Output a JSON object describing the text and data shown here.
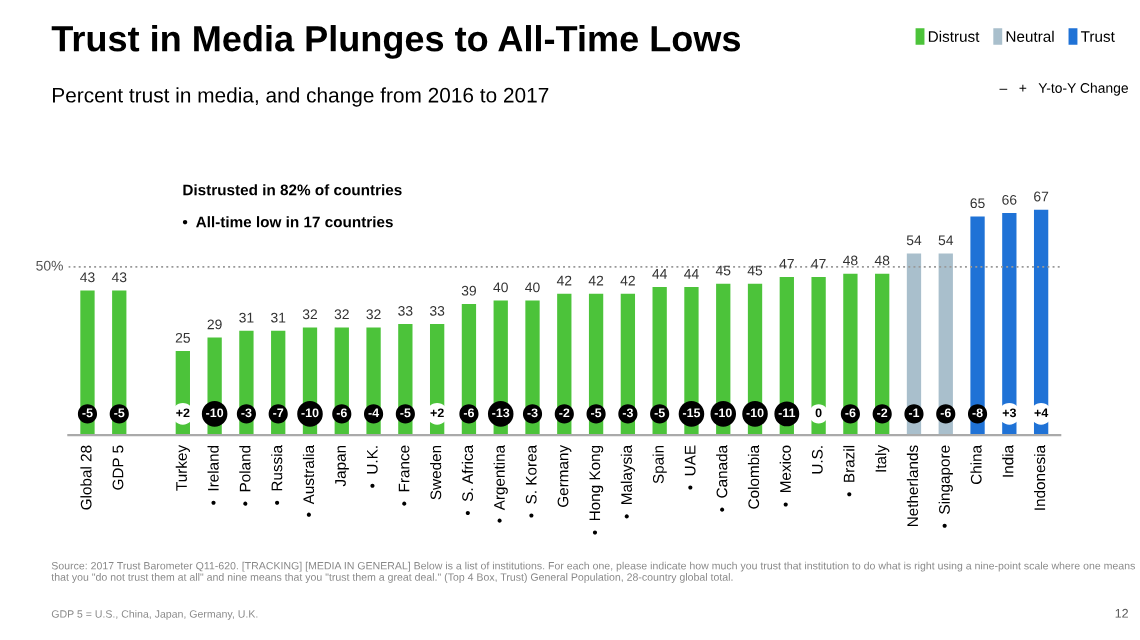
{
  "chart_data": {
    "type": "bar",
    "title": "Trust in Media Plunges to All-Time Lows",
    "subtitle": "Percent trust in media, and change from 2016 to 2017",
    "categories": [
      "Global 28",
      "GDP 5",
      null,
      "Turkey",
      "•  Ireland",
      "•  Poland",
      "•  Russia",
      "•  Australia",
      "Japan",
      "•  U.K.",
      "•  France",
      "Sweden",
      "•  S. Africa",
      "•  Argentina",
      "•  S. Korea",
      "Germany",
      "•  Hong Kong",
      "•  Malaysia",
      "Spain",
      "•  UAE",
      "•  Canada",
      "Colombia",
      "•  Mexico",
      "U.S.",
      "•  Brazil",
      "Italy",
      "Netherlands",
      "•  Singapore",
      "China",
      "India",
      "Indonesia"
    ],
    "series": [
      {
        "name": "Distrust",
        "color": "#4cc33a",
        "values": [
          43,
          43,
          null,
          25,
          29,
          31,
          31,
          32,
          32,
          32,
          33,
          33,
          39,
          40,
          40,
          42,
          42,
          42,
          44,
          44,
          45,
          45,
          47,
          47,
          48,
          48,
          null,
          null,
          null,
          null,
          null
        ]
      },
      {
        "name": "Neutral",
        "color": "#a9bfcc",
        "values": [
          null,
          null,
          null,
          null,
          null,
          null,
          null,
          null,
          null,
          null,
          null,
          null,
          null,
          null,
          null,
          null,
          null,
          null,
          null,
          null,
          null,
          null,
          null,
          null,
          null,
          null,
          54,
          54,
          null,
          null,
          null
        ]
      },
      {
        "name": "Trust",
        "color": "#1f72d6",
        "values": [
          null,
          null,
          null,
          null,
          null,
          null,
          null,
          null,
          null,
          null,
          null,
          null,
          null,
          null,
          null,
          null,
          null,
          null,
          null,
          null,
          null,
          null,
          null,
          null,
          null,
          null,
          null,
          null,
          65,
          66,
          67
        ]
      }
    ],
    "data_labels": true,
    "legend": "top right",
    "grid": false,
    "ref_lines": [
      {
        "axis": "y",
        "value": 50,
        "label": "50%",
        "color": "#999999",
        "line_style": "dotted"
      }
    ],
    "annotations": [
      {
        "text": "-5",
        "x": "Global 28"
      },
      {
        "text": "-5",
        "x": "GDP 5"
      },
      {
        "text": "+2",
        "x": "Turkey"
      },
      {
        "text": "-10",
        "x": "•  Ireland"
      },
      {
        "text": "-3",
        "x": "•  Poland"
      },
      {
        "text": "-7",
        "x": "•  Russia"
      },
      {
        "text": "-10",
        "x": "•  Australia"
      },
      {
        "text": "-6",
        "x": "Japan"
      },
      {
        "text": "-4",
        "x": "•  U.K."
      },
      {
        "text": "-5",
        "x": "•  France"
      },
      {
        "text": "+2",
        "x": "Sweden"
      },
      {
        "text": "-6",
        "x": "•  S. Africa"
      },
      {
        "text": "-13",
        "x": "•  Argentina"
      },
      {
        "text": "-3",
        "x": "•  S. Korea"
      },
      {
        "text": "-2",
        "x": "Germany"
      },
      {
        "text": "-5",
        "x": "•  Hong Kong"
      },
      {
        "text": "-3",
        "x": "•  Malaysia"
      },
      {
        "text": "-5",
        "x": "Spain"
      },
      {
        "text": "-15",
        "x": "•  UAE"
      },
      {
        "text": "-10",
        "x": "•  Canada"
      },
      {
        "text": "-10",
        "x": "Colombia"
      },
      {
        "text": "-11",
        "x": "•  Mexico"
      },
      {
        "text": "0",
        "x": "U.S."
      },
      {
        "text": "-6",
        "x": "•  Brazil"
      },
      {
        "text": "-2",
        "x": "Italy"
      },
      {
        "text": "-1",
        "x": "Netherlands"
      },
      {
        "text": "-6",
        "x": "•  Singapore"
      },
      {
        "text": "-8",
        "x": "China"
      },
      {
        "text": "+3",
        "x": "India"
      },
      {
        "text": "+4",
        "x": "Indonesia"
      },
      "Distrusted in 82% of countries",
      "•  All-time low in 17 countries",
      "–   +   Y-to-Y Change",
      "Source: 2017 Trust Barometer Q11-620. [TRACKING] [MEDIA IN GENERAL] Below is a list of institutions. For each one, please indicate how much you trust that institution to do what is right using a nine-point scale where one means that you \"do not trust them at all\" and nine means that you \"trust them a great deal.\" (Top 4 Box, Trust) General Population, 28-country global total.",
      "GDP 5 = U.S., China, Japan, Germany, U.K.",
      "12"
    ]
  }
}
